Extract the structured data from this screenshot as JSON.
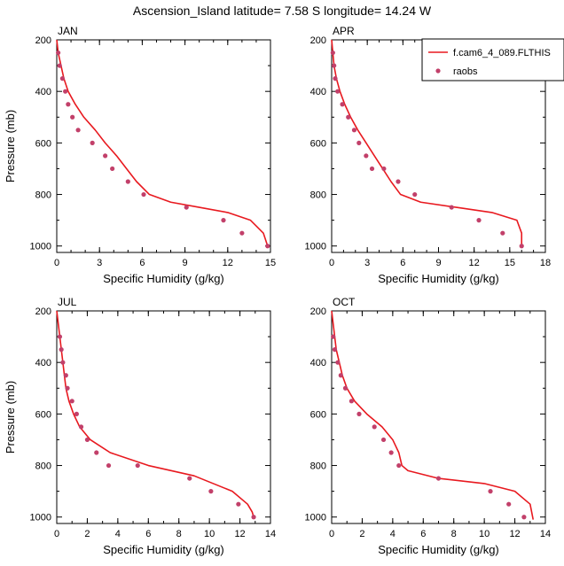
{
  "figure": {
    "title": "Ascension_Island  latitude= 7.58 S longitude= 14.24 W",
    "colors": {
      "model_line": "#e8191f",
      "obs_marker": "#c2406a",
      "axis": "#000000",
      "background": "#ffffff"
    }
  },
  "legend": {
    "placement": "top-right, overlapping APR panel",
    "model_label": "f.cam6_4_089.FLTHIS",
    "obs_label": "raobs"
  },
  "chart_data": [
    {
      "type": "line",
      "panel": "JAN",
      "xlabel": "Specific Humidity (g/kg)",
      "ylabel": "Pressure (mb)",
      "xlim": [
        0,
        15
      ],
      "ylim": [
        200,
        1025
      ],
      "y_reversed": true,
      "xticks": [
        0,
        3,
        6,
        9,
        12,
        15
      ],
      "yticks": [
        200,
        400,
        600,
        800,
        1000
      ],
      "series": [
        {
          "kind": "line",
          "x": [
            0.0,
            0.1,
            0.3,
            0.5,
            0.8,
            1.3,
            1.9,
            2.7,
            3.4,
            4.2,
            4.9,
            5.6,
            6.5,
            8.0,
            10.0,
            12.0,
            13.6,
            14.5,
            14.8
          ],
          "y": [
            200,
            250,
            300,
            350,
            400,
            450,
            500,
            550,
            600,
            650,
            700,
            750,
            800,
            830,
            850,
            870,
            900,
            950,
            1000
          ]
        },
        {
          "kind": "scatter",
          "x": [
            0.1,
            0.2,
            0.4,
            0.6,
            0.8,
            1.1,
            1.5,
            2.5,
            3.4,
            3.9,
            5.0,
            6.1,
            9.1,
            11.7,
            13.0,
            14.8
          ],
          "y": [
            250,
            300,
            350,
            400,
            450,
            500,
            550,
            600,
            650,
            700,
            750,
            800,
            850,
            900,
            950,
            1000
          ]
        }
      ]
    },
    {
      "type": "line",
      "panel": "APR",
      "xlabel": "Specific Humidity (g/kg)",
      "ylabel": "",
      "xlim": [
        0,
        18
      ],
      "ylim": [
        200,
        1025
      ],
      "y_reversed": true,
      "xticks": [
        0,
        3,
        6,
        9,
        12,
        15,
        18
      ],
      "yticks": [
        200,
        400,
        600,
        800,
        1000
      ],
      "series": [
        {
          "kind": "line",
          "x": [
            0.0,
            0.1,
            0.2,
            0.4,
            0.7,
            1.1,
            1.6,
            2.2,
            2.9,
            3.6,
            4.3,
            5.0,
            5.8,
            7.5,
            10.5,
            13.5,
            15.6,
            16.0,
            16.0
          ],
          "y": [
            200,
            250,
            300,
            350,
            400,
            450,
            500,
            550,
            600,
            650,
            700,
            750,
            800,
            830,
            850,
            870,
            900,
            950,
            1000
          ]
        },
        {
          "kind": "scatter",
          "x": [
            0.1,
            0.2,
            0.3,
            0.5,
            0.9,
            1.4,
            1.9,
            2.3,
            2.9,
            3.4,
            4.4,
            5.6,
            7.0,
            10.1,
            12.4,
            14.4,
            16.0
          ],
          "y": [
            250,
            300,
            350,
            400,
            450,
            500,
            550,
            600,
            650,
            700,
            700,
            750,
            800,
            850,
            900,
            950,
            1000
          ]
        }
      ]
    },
    {
      "type": "line",
      "panel": "JUL",
      "xlabel": "Specific Humidity (g/kg)",
      "ylabel": "Pressure (mb)",
      "xlim": [
        0,
        14
      ],
      "ylim": [
        200,
        1025
      ],
      "y_reversed": true,
      "xticks": [
        0,
        2,
        4,
        6,
        8,
        10,
        12,
        14
      ],
      "yticks": [
        200,
        400,
        600,
        800,
        1000
      ],
      "series": [
        {
          "kind": "line",
          "x": [
            0.0,
            0.1,
            0.2,
            0.3,
            0.4,
            0.5,
            0.6,
            0.8,
            1.1,
            1.5,
            2.2,
            3.5,
            6.0,
            9.0,
            11.5,
            12.5,
            12.8,
            12.9
          ],
          "y": [
            200,
            250,
            300,
            350,
            400,
            450,
            500,
            550,
            600,
            650,
            700,
            750,
            800,
            840,
            900,
            950,
            980,
            1000
          ]
        },
        {
          "kind": "scatter",
          "x": [
            0.2,
            0.3,
            0.4,
            0.6,
            0.7,
            1.0,
            1.3,
            1.6,
            2.0,
            2.6,
            3.4,
            5.3,
            8.7,
            10.1,
            11.9,
            12.9
          ],
          "y": [
            300,
            350,
            400,
            450,
            500,
            550,
            600,
            650,
            700,
            750,
            800,
            800,
            850,
            900,
            950,
            1000
          ]
        }
      ]
    },
    {
      "type": "line",
      "panel": "OCT",
      "xlabel": "Specific Humidity (g/kg)",
      "ylabel": "",
      "xlim": [
        0,
        14
      ],
      "ylim": [
        200,
        1025
      ],
      "y_reversed": true,
      "xticks": [
        0,
        2,
        4,
        6,
        8,
        10,
        12,
        14
      ],
      "yticks": [
        200,
        400,
        600,
        800,
        1000
      ],
      "series": [
        {
          "kind": "line",
          "x": [
            0.0,
            0.1,
            0.2,
            0.3,
            0.5,
            0.7,
            1.0,
            1.5,
            2.3,
            3.3,
            4.0,
            4.4,
            4.6,
            5.0,
            7.0,
            10.0,
            12.0,
            13.0,
            13.2
          ],
          "y": [
            200,
            250,
            300,
            350,
            400,
            450,
            500,
            550,
            600,
            650,
            700,
            750,
            800,
            820,
            850,
            870,
            900,
            950,
            1010
          ]
        },
        {
          "kind": "scatter",
          "x": [
            0.1,
            0.2,
            0.4,
            0.6,
            0.9,
            1.3,
            1.8,
            2.8,
            3.4,
            3.9,
            4.4,
            7.0,
            10.4,
            11.6,
            12.6
          ],
          "y": [
            300,
            350,
            400,
            450,
            500,
            550,
            600,
            650,
            700,
            750,
            800,
            850,
            900,
            950,
            1000
          ]
        }
      ]
    }
  ]
}
